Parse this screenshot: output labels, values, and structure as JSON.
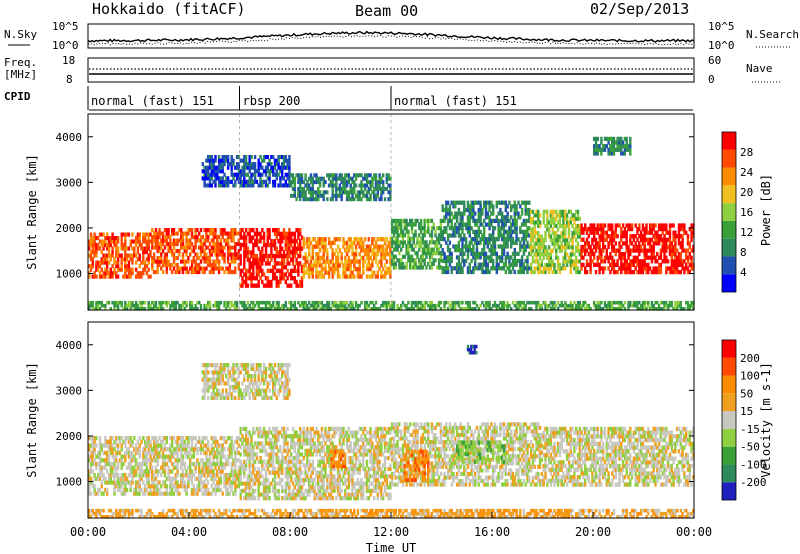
{
  "header": {
    "title": "Hokkaido (fitACF)",
    "beam": "Beam 00",
    "date": "02/Sep/2013"
  },
  "noise_panel": {
    "left_label": "N.Sky",
    "right_label": "N.Search",
    "left_ticks": [
      "10^5",
      "10^0"
    ],
    "right_ticks": [
      "10^5",
      "10^0"
    ]
  },
  "freq_panel": {
    "left_label_line1": "Freq.",
    "left_label_line2": "[MHz]",
    "right_label": "Nave",
    "left_ticks": [
      "18",
      "8"
    ],
    "right_ticks": [
      "60",
      "0"
    ]
  },
  "cpid": {
    "label": "CPID",
    "segments": [
      {
        "start_hour": 0,
        "end_hour": 6,
        "name": "normal (fast) 151"
      },
      {
        "start_hour": 6,
        "end_hour": 12,
        "name": "rbsp 200"
      },
      {
        "start_hour": 12,
        "end_hour": 24,
        "name": "normal (fast) 151"
      }
    ]
  },
  "colors": {
    "power_scale": [
      "#0000ff",
      "#1f4fb0",
      "#2e8a5a",
      "#3aa03a",
      "#90d040",
      "#f0c020",
      "#ff8c00",
      "#ff4a00",
      "#ff0000"
    ],
    "velocity_scale": [
      "#2020c0",
      "#2e8a5a",
      "#3aa03a",
      "#90d040",
      "#c8c8c0",
      "#f0a020",
      "#ff8c00",
      "#ff4a00",
      "#ff0000"
    ],
    "ground_scatter": "#c8c8c0"
  },
  "chart_data": [
    {
      "type": "heatmap",
      "name": "power",
      "ylabel": "Slant Range [km]",
      "ylim": [
        200,
        4500
      ],
      "yticks": [
        1000,
        2000,
        3000,
        4000
      ],
      "xlim": [
        0,
        24
      ],
      "colorbar": {
        "label": "Power [dB]",
        "ticks": [
          "4",
          "8",
          "12",
          "16",
          "20",
          "24",
          "28"
        ]
      },
      "bands": [
        {
          "x": [
            0.0,
            2.5
          ],
          "y": [
            900,
            1900
          ],
          "level": 7
        },
        {
          "x": [
            2.5,
            6.0
          ],
          "y": [
            1000,
            2000
          ],
          "level": 7
        },
        {
          "x": [
            6.0,
            8.5
          ],
          "y": [
            700,
            2000
          ],
          "level": 8
        },
        {
          "x": [
            8.5,
            12.0
          ],
          "y": [
            900,
            1800
          ],
          "level": 6
        },
        {
          "x": [
            12.0,
            14.0
          ],
          "y": [
            1100,
            2200
          ],
          "level": 3
        },
        {
          "x": [
            14.0,
            17.5
          ],
          "y": [
            1000,
            2600
          ],
          "level": 2
        },
        {
          "x": [
            17.5,
            19.5
          ],
          "y": [
            1000,
            2400
          ],
          "level": 4
        },
        {
          "x": [
            19.5,
            24.0
          ],
          "y": [
            1000,
            2100
          ],
          "level": 8
        },
        {
          "x": [
            4.5,
            8.0
          ],
          "y": [
            2900,
            3600
          ],
          "level": 1
        },
        {
          "x": [
            8.0,
            12.0
          ],
          "y": [
            2600,
            3200
          ],
          "level": 2
        },
        {
          "x": [
            20.0,
            21.5
          ],
          "y": [
            3600,
            4000
          ],
          "level": 2
        },
        {
          "x": [
            0.0,
            24.0
          ],
          "y": [
            200,
            400
          ],
          "level": 3
        }
      ]
    },
    {
      "type": "heatmap",
      "name": "velocity",
      "ylabel": "Slant Range [km]",
      "xlabel": "Time UT",
      "ylim": [
        200,
        4500
      ],
      "yticks": [
        1000,
        2000,
        3000,
        4000
      ],
      "xlim": [
        0,
        24
      ],
      "xticks": [
        "00:00",
        "04:00",
        "08:00",
        "12:00",
        "16:00",
        "20:00",
        "00:00"
      ],
      "colorbar": {
        "label": "Velocity [m s-1]",
        "ticks": [
          "-200",
          "-100",
          "-50",
          "-15",
          "15",
          "50",
          "100",
          "200"
        ]
      },
      "bands": [
        {
          "x": [
            0.0,
            6.0
          ],
          "y": [
            700,
            2000
          ],
          "level": 4
        },
        {
          "x": [
            6.0,
            12.0
          ],
          "y": [
            600,
            2200
          ],
          "level": 4
        },
        {
          "x": [
            12.0,
            18.0
          ],
          "y": [
            900,
            2300
          ],
          "level": 4
        },
        {
          "x": [
            18.0,
            24.0
          ],
          "y": [
            900,
            2200
          ],
          "level": 4
        },
        {
          "x": [
            9.6,
            10.2
          ],
          "y": [
            1300,
            1700
          ],
          "level": 6
        },
        {
          "x": [
            14.5,
            16.5
          ],
          "y": [
            1400,
            1900
          ],
          "level": 3
        },
        {
          "x": [
            12.5,
            13.5
          ],
          "y": [
            1000,
            1700
          ],
          "level": 6
        },
        {
          "x": [
            15.0,
            15.4
          ],
          "y": [
            3800,
            4000
          ],
          "level": 0
        },
        {
          "x": [
            4.5,
            8.0
          ],
          "y": [
            2800,
            3600
          ],
          "level": 4
        },
        {
          "x": [
            0.0,
            24.0
          ],
          "y": [
            200,
            400
          ],
          "level": 5
        }
      ]
    }
  ]
}
